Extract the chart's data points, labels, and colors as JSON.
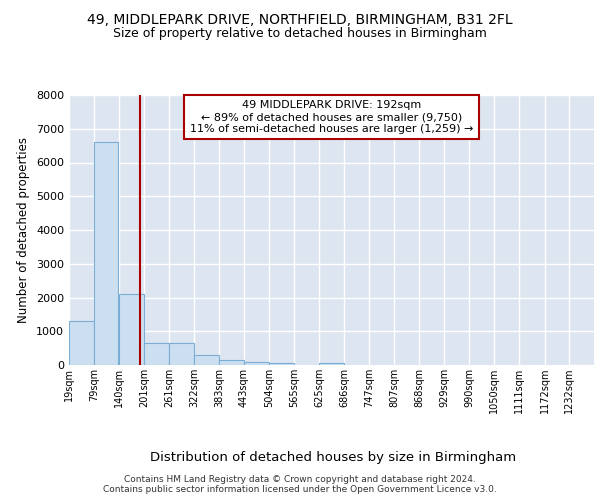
{
  "title1": "49, MIDDLEPARK DRIVE, NORTHFIELD, BIRMINGHAM, B31 2FL",
  "title2": "Size of property relative to detached houses in Birmingham",
  "xlabel": "Distribution of detached houses by size in Birmingham",
  "ylabel": "Number of detached properties",
  "bin_edges": [
    19,
    79,
    140,
    201,
    261,
    322,
    383,
    443,
    504,
    565,
    625,
    686,
    747,
    807,
    868,
    929,
    990,
    1050,
    1111,
    1172,
    1232
  ],
  "bar_heights": [
    1300,
    6600,
    2100,
    650,
    650,
    300,
    150,
    100,
    60,
    0,
    60,
    0,
    0,
    0,
    0,
    0,
    0,
    0,
    0,
    0
  ],
  "bar_color": "#ccdff0",
  "bar_edge_color": "#7aaed6",
  "vline_x": 192,
  "vline_color": "#aa0000",
  "annotation_text": "49 MIDDLEPARK DRIVE: 192sqm\n← 89% of detached houses are smaller (9,750)\n11% of semi-detached houses are larger (1,259) →",
  "annotation_box_color": "#ffffff",
  "annotation_border_color": "#aa0000",
  "ylim": [
    0,
    8000
  ],
  "yticks": [
    0,
    1000,
    2000,
    3000,
    4000,
    5000,
    6000,
    7000,
    8000
  ],
  "background_color": "#dde5f0",
  "grid_color": "#ffffff",
  "footer": "Contains HM Land Registry data © Crown copyright and database right 2024.\nContains public sector information licensed under the Open Government Licence v3.0.",
  "tick_labels": [
    "19sqm",
    "79sqm",
    "140sqm",
    "201sqm",
    "261sqm",
    "322sqm",
    "383sqm",
    "443sqm",
    "504sqm",
    "565sqm",
    "625sqm",
    "686sqm",
    "747sqm",
    "807sqm",
    "868sqm",
    "929sqm",
    "990sqm",
    "1050sqm",
    "1111sqm",
    "1172sqm",
    "1232sqm"
  ]
}
